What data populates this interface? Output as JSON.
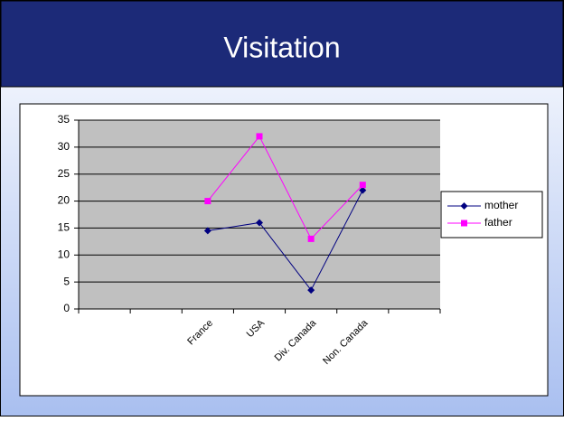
{
  "title": "Visitation",
  "chart_data": {
    "type": "line",
    "categories": [
      null,
      null,
      "France",
      "USA",
      "Div. Canada",
      "Non. Canada",
      null
    ],
    "series": [
      {
        "name": "mother",
        "color": "#000080",
        "values": [
          null,
          null,
          14.5,
          16,
          3.5,
          22,
          null
        ]
      },
      {
        "name": "father",
        "color": "#ff00ff",
        "values": [
          null,
          null,
          20,
          32,
          13,
          23,
          null
        ]
      }
    ],
    "ylim": [
      0,
      35
    ],
    "yticks": [
      0,
      5,
      10,
      15,
      20,
      25,
      30,
      35
    ],
    "grid": true,
    "legend": "right"
  }
}
